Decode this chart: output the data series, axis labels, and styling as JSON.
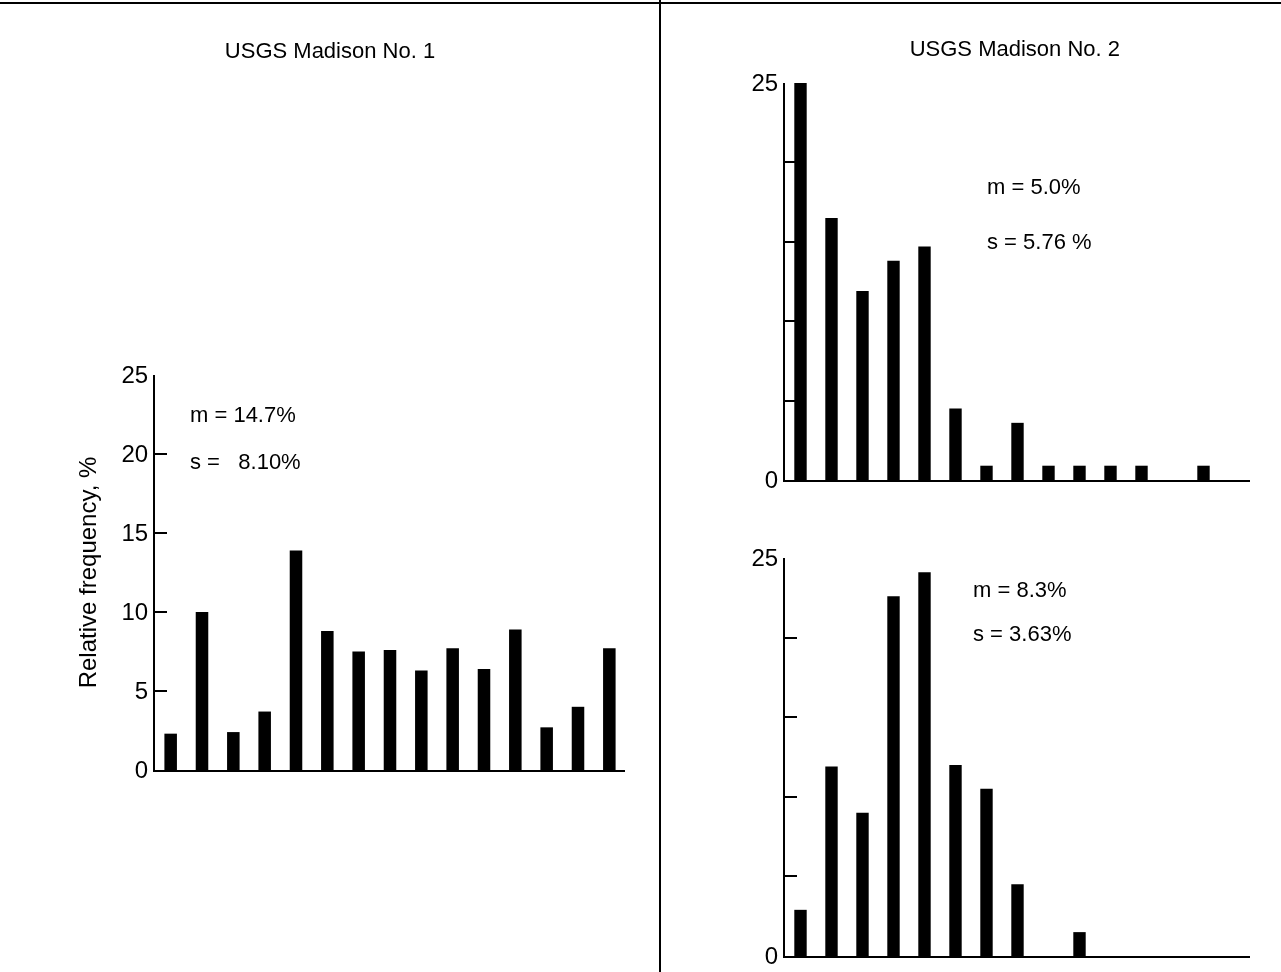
{
  "chart_data": [
    {
      "type": "bar",
      "title": "USGS Madison No. 1",
      "ylabel": "Relative frequency, %",
      "categories": [
        null,
        null,
        null,
        null,
        null,
        null,
        null,
        null,
        null,
        null,
        null,
        null,
        null,
        null,
        null
      ],
      "values": [
        2.3,
        10.0,
        2.4,
        3.7,
        13.9,
        8.8,
        7.5,
        7.6,
        6.3,
        7.7,
        6.4,
        8.9,
        2.7,
        4.0,
        7.7
      ],
      "color": "#000000",
      "ylim": [
        0,
        25
      ],
      "yticks": [
        0,
        5,
        10,
        15,
        20,
        25
      ],
      "grid": false,
      "tick_labels": "y",
      "annotations": [
        "m = 14.7%",
        "s =   8.10%"
      ]
    },
    {
      "type": "bar",
      "title": "USGS Madison No. 2",
      "categories": [
        null,
        null,
        null,
        null,
        null,
        null,
        null,
        null,
        null,
        null,
        null,
        null,
        null,
        null,
        null
      ],
      "values": [
        25.0,
        16.5,
        11.9,
        13.8,
        14.7,
        4.5,
        0.9,
        3.6,
        0.9,
        0.9,
        0.9,
        0.9,
        0,
        0.9,
        0
      ],
      "color": "#000000",
      "ylim": [
        0,
        25
      ],
      "yticks": [
        0,
        {
          "value": 5,
          "label": null
        },
        {
          "value": 10,
          "label": null
        },
        {
          "value": 15,
          "label": null
        },
        {
          "value": 20,
          "label": null
        },
        25
      ],
      "grid": false,
      "tick_labels": "y",
      "annotations": [
        "m = 5.0%",
        "s = 5.76 %"
      ]
    },
    {
      "type": "bar",
      "categories": [
        null,
        null,
        null,
        null,
        null,
        null,
        null,
        null,
        null,
        null,
        null,
        null,
        null,
        null,
        null
      ],
      "values": [
        2.9,
        11.9,
        9.0,
        22.6,
        24.1,
        12.0,
        10.5,
        4.5,
        0,
        1.5,
        0,
        0,
        0,
        0,
        0
      ],
      "color": "#000000",
      "ylim": [
        0,
        25
      ],
      "yticks": [
        0,
        {
          "value": 5,
          "label": null
        },
        {
          "value": 10,
          "label": null
        },
        {
          "value": 15,
          "label": null
        },
        {
          "value": 20,
          "label": null
        },
        25
      ],
      "grid": false,
      "tick_labels": "y",
      "annotations": [
        "m = 8.3%",
        "s = 3.63%"
      ]
    }
  ]
}
